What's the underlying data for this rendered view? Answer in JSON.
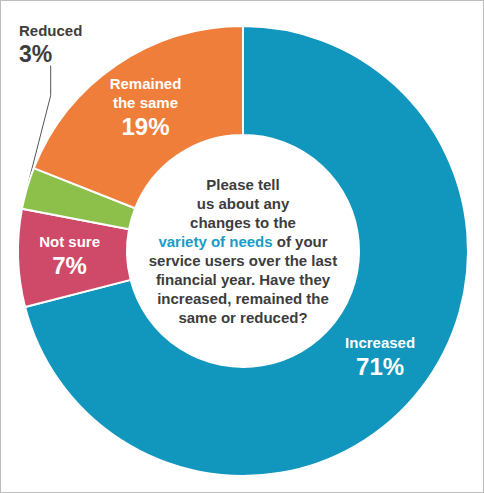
{
  "chart_data": {
    "type": "pie",
    "title": "Please tell us about any changes to the variety of needs of your service users over the last financial year. Have they increased, remained the same or reduced?",
    "highlight": "variety of needs",
    "categories": [
      "Increased",
      "Not sure",
      "Reduced",
      "Remained the same"
    ],
    "values": [
      71,
      7,
      3,
      19
    ],
    "value_labels": [
      "71%",
      "7%",
      "3%",
      "19%"
    ],
    "colors": [
      "#1196be",
      "#cf4a68",
      "#8dbf4b",
      "#f07e3b"
    ],
    "data_labels": true
  }
}
